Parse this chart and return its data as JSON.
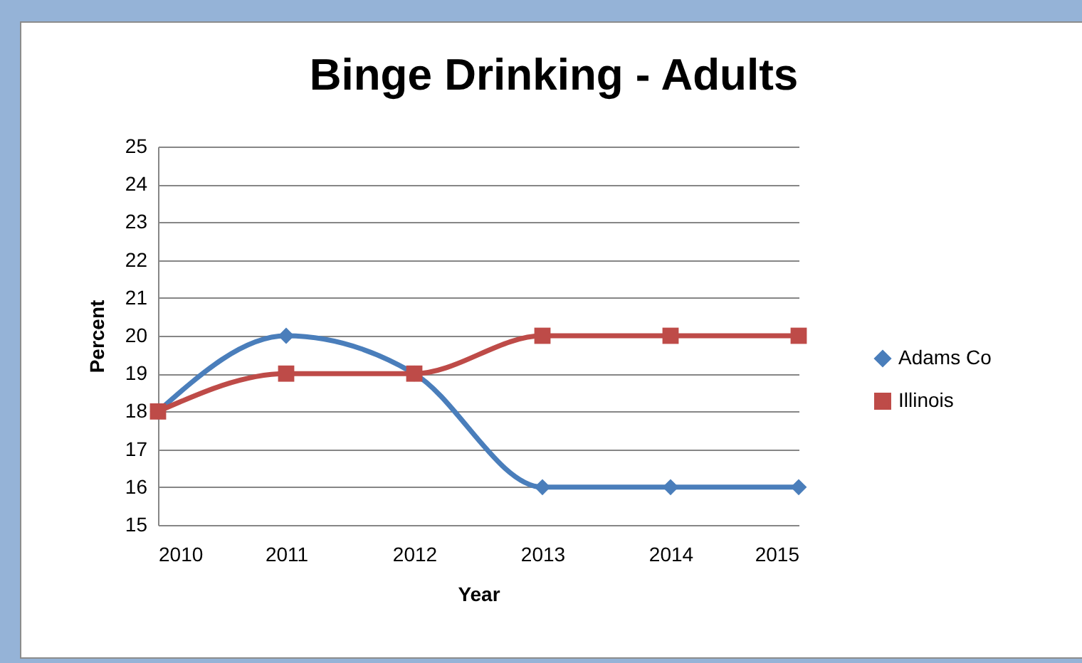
{
  "chart_data": {
    "type": "line",
    "title": "Binge Drinking - Adults",
    "xlabel": "Year",
    "ylabel": "Percent",
    "x": [
      2010,
      2011,
      2012,
      2013,
      2014,
      2015
    ],
    "series": [
      {
        "name": "Adams Co",
        "color": "#4a7ebb",
        "marker": "diamond",
        "values": [
          18,
          20,
          19,
          16,
          16,
          16
        ]
      },
      {
        "name": "Illinois",
        "color": "#be4b48",
        "marker": "square",
        "values": [
          18,
          19,
          19,
          20,
          20,
          20
        ]
      }
    ],
    "xlim": [
      2010,
      2015
    ],
    "xticks": [
      2010,
      2011,
      2012,
      2013,
      2014,
      2015
    ],
    "ylim": [
      15,
      25
    ],
    "yticks": [
      15,
      16,
      17,
      18,
      19,
      20,
      21,
      22,
      23,
      24,
      25
    ],
    "grid": "y",
    "legend": "right",
    "line_style": "solid"
  }
}
